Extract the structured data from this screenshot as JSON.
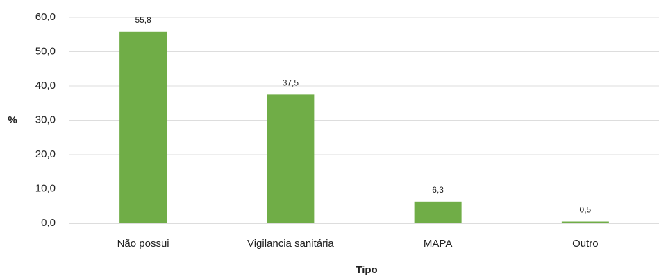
{
  "chart_data": {
    "type": "bar",
    "categories": [
      "Não possui",
      "Vigilancia sanitária",
      "MAPA",
      "Outro"
    ],
    "values": [
      55.8,
      37.5,
      6.3,
      0.5
    ],
    "value_labels": [
      "55,8",
      "37,5",
      "6,3",
      "0,5"
    ],
    "color": "#70ad47",
    "ylabel": "%",
    "xlabel": "Tipo",
    "ylim": [
      0,
      60
    ],
    "yticks": [
      {
        "value": 0,
        "label": "0,0"
      },
      {
        "value": 10,
        "label": "10,0"
      },
      {
        "value": 20,
        "label": "20,0"
      },
      {
        "value": 30,
        "label": "30,0"
      },
      {
        "value": 40,
        "label": "40,0"
      },
      {
        "value": 50,
        "label": "50,0"
      },
      {
        "value": 60,
        "label": "60,0"
      }
    ],
    "grid": true
  }
}
